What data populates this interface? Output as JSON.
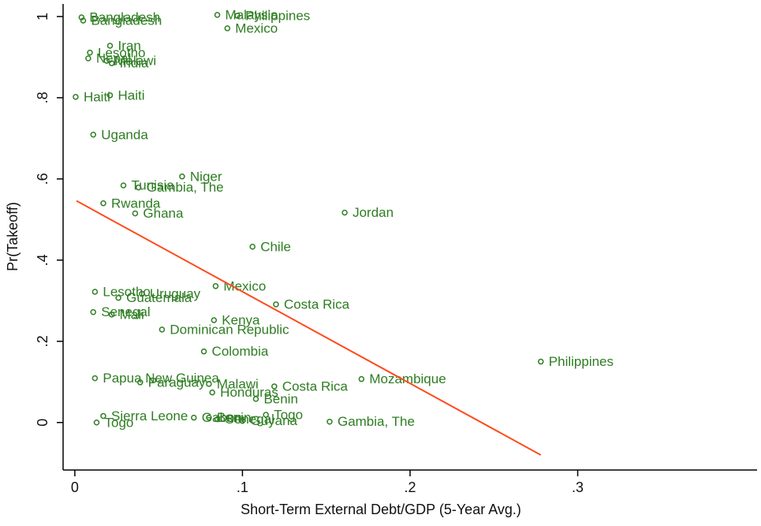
{
  "chart_data": {
    "type": "scatter",
    "x_label": "Short-Term External Debt/GDP (5-Year Avg.)",
    "y_label": "Pr(Takeoff)",
    "color": "#2e7d22",
    "labels": [
      "Bangladesh",
      "Bangladesh",
      "Malaysia",
      "Philippines",
      "Mexico",
      "Iran",
      "Lesotho",
      "Nepal",
      "Malawi",
      "India",
      "Haiti",
      "Haiti",
      "Uganda",
      "Niger",
      "Tunisia",
      "Gambia, The",
      "Rwanda",
      "Ghana",
      "Jordan",
      "Chile",
      "Lesotho",
      "Uruguay",
      "Guatemala",
      "Mexico",
      "Costa Rica",
      "Senegal",
      "Mali",
      "Kenya",
      "Dominican Republic",
      "Colombia",
      "Philippines",
      "Papua New Guinea",
      "Paraguay",
      "Malawi",
      "Honduras",
      "Costa Rica",
      "Mozambique",
      "Benin",
      "Sierra Leone",
      "Togo",
      "Gabon",
      "Benin",
      "Senegal",
      "Guyana",
      "Togo",
      "Gambia, The"
    ],
    "x": [
      0.004,
      0.005,
      0.085,
      0.097,
      0.091,
      0.021,
      0.009,
      0.008,
      0.019,
      0.022,
      0.0005,
      0.021,
      0.011,
      0.064,
      0.029,
      0.038,
      0.017,
      0.036,
      0.161,
      0.106,
      0.012,
      0.04,
      0.026,
      0.084,
      0.12,
      0.011,
      0.022,
      0.083,
      0.052,
      0.077,
      0.278,
      0.012,
      0.039,
      0.08,
      0.082,
      0.119,
      0.171,
      0.108,
      0.017,
      0.013,
      0.071,
      0.08,
      0.085,
      0.1,
      0.114,
      0.152
    ],
    "values": [
      0.998,
      0.99,
      1.004,
      1.002,
      0.971,
      0.928,
      0.911,
      0.897,
      0.891,
      0.885,
      0.802,
      0.806,
      0.709,
      0.606,
      0.584,
      0.579,
      0.54,
      0.515,
      0.517,
      0.433,
      0.322,
      0.317,
      0.307,
      0.336,
      0.291,
      0.272,
      0.266,
      0.252,
      0.229,
      0.175,
      0.15,
      0.109,
      0.099,
      0.095,
      0.074,
      0.089,
      0.107,
      0.058,
      0.016,
      0.0,
      0.012,
      0.012,
      0.008,
      0.004,
      0.019,
      0.002
    ],
    "fit_line": {
      "color": "#ff4a1c",
      "x": [
        0.001,
        0.278
      ],
      "y": [
        0.546,
        -0.08
      ]
    },
    "xlim": [
      -0.007,
      0.407
    ],
    "ylim": [
      -0.117,
      1.031
    ],
    "xticks": [
      0,
      {
        "value": 0.1,
        "label": ".1"
      },
      {
        "value": 0.2,
        "label": ".2"
      },
      {
        "value": 0.3,
        "label": ".3"
      }
    ],
    "yticks": [
      0,
      {
        "value": 0.2,
        "label": ".2"
      },
      {
        "value": 0.4,
        "label": ".4"
      },
      {
        "value": 0.6,
        "label": ".6"
      },
      {
        "value": 0.8,
        "label": ".8"
      },
      1
    ]
  }
}
